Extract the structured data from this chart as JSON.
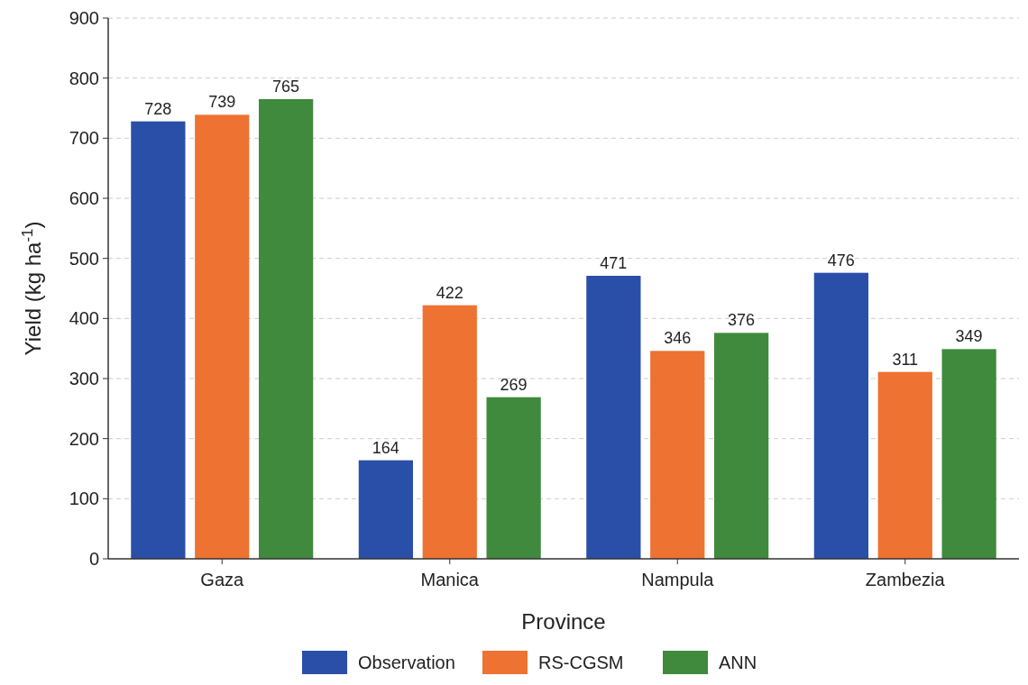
{
  "chart_data": {
    "type": "bar",
    "xlabel": "Province",
    "ylabel": "Yield (kg ha$^{-1}$)",
    "categories": [
      "Gaza",
      "Manica",
      "Nampula",
      "Zambezia"
    ],
    "series": [
      {
        "name": "Observation",
        "color": "#2a4fa8",
        "values": [
          728,
          164,
          471,
          476
        ]
      },
      {
        "name": "RS-CGSM",
        "color": "#ee7231",
        "values": [
          739,
          422,
          346,
          311
        ]
      },
      {
        "name": "ANN",
        "color": "#3f8a3c",
        "values": [
          765,
          269,
          376,
          349
        ]
      }
    ],
    "ylim": [
      0,
      900
    ],
    "yticks": [
      0,
      100,
      200,
      300,
      400,
      500,
      600,
      700,
      800,
      900
    ],
    "grid": "y",
    "legend": "bottom",
    "data_labels": true
  }
}
